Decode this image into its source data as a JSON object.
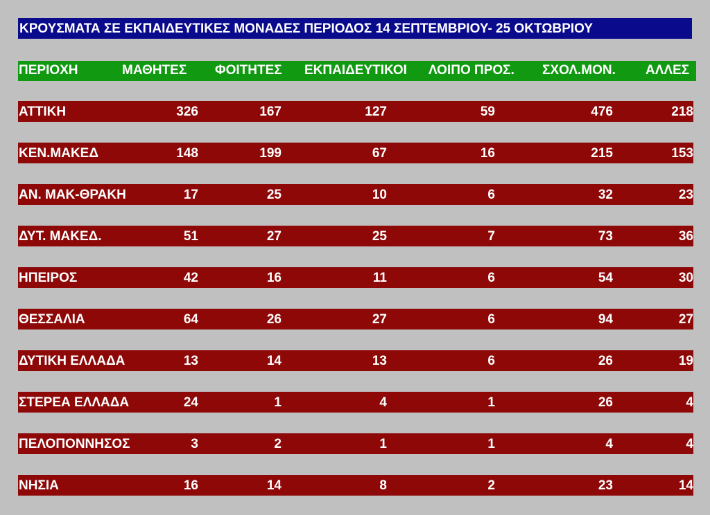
{
  "title": "ΚΡΟΥΣΜΑΤΑ ΣΕ ΕΚΠΑΙΔΕΥΤΙΚΕΣ ΜΟΝΑΔΕΣ  ΠΕΡΙΟΔΟΣ 14  ΣΕΠΤΕΜΒΡΙΟΥ-  25 ΟΚΤΩΒΡΙΟΥ",
  "headers": [
    "ΠΕΡΙΟΧΗ",
    "ΜΑΘΗΤΕΣ",
    "ΦΟΙΤΗΤΕΣ",
    "ΕΚΠΑΙΔΕΥΤΙΚΟΙ",
    "ΛΟΙΠΟ ΠΡΟΣ.",
    "ΣΧΟΛ.ΜΟΝ.",
    "ΑΛΛΕΣ"
  ],
  "rows": [
    {
      "region": "ΑΤΤΙΚΗ",
      "values": [
        "326",
        "167",
        "127",
        "59",
        "476",
        "218"
      ]
    },
    {
      "region": "ΚΕΝ.ΜΑΚΕΔ",
      "values": [
        "148",
        "199",
        "67",
        "16",
        "215",
        "153"
      ]
    },
    {
      "region": "ΑΝ. ΜΑΚ-ΘΡΑΚΗ",
      "values": [
        "17",
        "25",
        "10",
        "6",
        "32",
        "23"
      ]
    },
    {
      "region": "ΔΥΤ. ΜΑΚΕΔ.",
      "values": [
        "51",
        "27",
        "25",
        "7",
        "73",
        "36"
      ]
    },
    {
      "region": "ΗΠΕΙΡΟΣ",
      "values": [
        "42",
        "16",
        "11",
        "6",
        "54",
        "30"
      ]
    },
    {
      "region": "ΘΕΣΣΑΛΙΑ",
      "values": [
        "64",
        "26",
        "27",
        "6",
        "94",
        "27"
      ]
    },
    {
      "region": "ΔΥΤΙΚΗ ΕΛΛΑΔΑ",
      "values": [
        "13",
        "14",
        "13",
        "6",
        "26",
        "19"
      ]
    },
    {
      "region": "ΣΤΕΡΕΑ ΕΛΛΑΔΑ",
      "values": [
        "24",
        "1",
        "4",
        "1",
        "26",
        "4"
      ]
    },
    {
      "region": "ΠΕΛΟΠΟΝΝΗΣΟΣ",
      "values": [
        "3",
        "2",
        "1",
        "1",
        "4",
        "4"
      ]
    },
    {
      "region": "ΝΗΣΙΑ",
      "values": [
        "16",
        "14",
        "8",
        "2",
        "23",
        "14"
      ]
    }
  ],
  "colors": {
    "background": "#c0c0c0",
    "title_bar": "#0a0a8c",
    "header_bar": "#119a11",
    "row_bar": "#8e0808",
    "text": "#ffffff"
  }
}
